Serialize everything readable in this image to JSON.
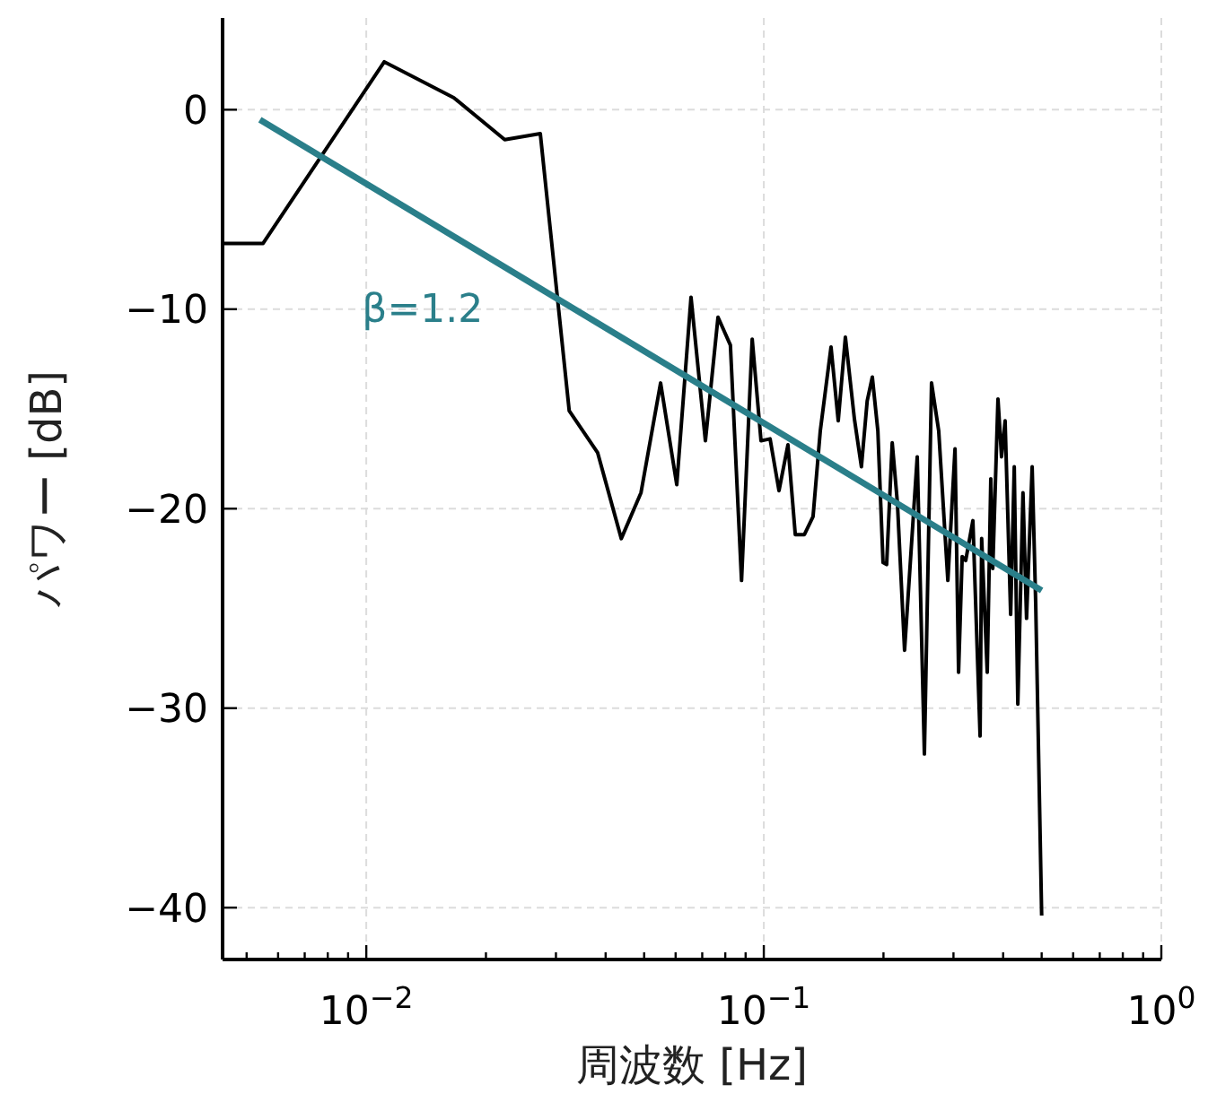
{
  "chart_data": {
    "type": "line",
    "xlabel": "周波数 [Hz]",
    "ylabel": "パワー [dB]",
    "log": "x",
    "grid": true,
    "marker": "none",
    "line_style": "solid",
    "xlim": [
      0.00435,
      1
    ],
    "ylim": [
      -42.6,
      4.6
    ],
    "xticks": [
      {
        "value": 0.005,
        "label": null
      },
      {
        "value": 0.006,
        "label": null
      },
      {
        "value": 0.007,
        "label": null
      },
      {
        "value": 0.008,
        "label": null
      },
      {
        "value": 0.009,
        "label": null
      },
      {
        "value": 0.01,
        "label": "10$^{−2}$"
      },
      {
        "value": 0.02,
        "label": null
      },
      {
        "value": 0.03,
        "label": null
      },
      {
        "value": 0.04,
        "label": null
      },
      {
        "value": 0.05,
        "label": null
      },
      {
        "value": 0.06,
        "label": null
      },
      {
        "value": 0.07,
        "label": null
      },
      {
        "value": 0.08,
        "label": null
      },
      {
        "value": 0.09,
        "label": null
      },
      {
        "value": 0.1,
        "label": "10$^{−1}$"
      },
      {
        "value": 0.2,
        "label": null
      },
      {
        "value": 0.3,
        "label": null
      },
      {
        "value": 0.4,
        "label": null
      },
      {
        "value": 0.5,
        "label": null
      },
      {
        "value": 0.6,
        "label": null
      },
      {
        "value": 0.7,
        "label": null
      },
      {
        "value": 0.8,
        "label": null
      },
      {
        "value": 0.9,
        "label": null
      },
      {
        "value": 1,
        "label": "10$^{0}$"
      }
    ],
    "yticks": [
      {
        "value": -40,
        "label": "−40"
      },
      {
        "value": -30,
        "label": "−30"
      },
      {
        "value": -20,
        "label": "−20"
      },
      {
        "value": -10,
        "label": "−10"
      },
      0
    ],
    "annotations": [
      "β=1.2"
    ],
    "series": [
      {
        "color": "#000000",
        "x": [
          0.00435,
          0.0055,
          0.0111,
          0.0166,
          0.0223,
          0.0274,
          0.0324,
          0.0382,
          0.0438,
          0.0491,
          0.055,
          0.0604,
          0.0656,
          0.0713,
          0.0767,
          0.0824,
          0.0879,
          0.0935,
          0.0984,
          0.1037,
          0.1092,
          0.115,
          0.12,
          0.1265,
          0.133,
          0.1387,
          0.1476,
          0.1539,
          0.1604,
          0.169,
          0.176,
          0.182,
          0.1875,
          0.1936,
          0.1995,
          0.2037,
          0.2104,
          0.2168,
          0.226,
          0.2432,
          0.2535,
          0.2642,
          0.2754,
          0.2904,
          0.3027,
          0.309,
          0.3155,
          0.322,
          0.3357,
          0.35,
          0.3532,
          0.3648,
          0.3724,
          0.3767,
          0.3882,
          0.3963,
          0.4046,
          0.4178,
          0.4266,
          0.4355,
          0.4487,
          0.4581,
          0.4732,
          0.4831,
          0.5
        ],
        "values": [
          -6.7,
          -6.7,
          2.4,
          0.6,
          -1.5,
          -1.2,
          -15.1,
          -17.2,
          -21.5,
          -19.2,
          -13.7,
          -18.8,
          -9.4,
          -16.6,
          -10.4,
          -11.8,
          -23.6,
          -11.5,
          -16.6,
          -16.5,
          -19.1,
          -16.8,
          -21.3,
          -21.3,
          -20.4,
          -16.1,
          -11.9,
          -15.6,
          -11.4,
          -15.5,
          -17.9,
          -14.6,
          -13.4,
          -16.1,
          -22.7,
          -22.8,
          -16.7,
          -19.7,
          -27.1,
          -17.4,
          -32.3,
          -13.7,
          -16.1,
          -23.6,
          -17.0,
          -28.2,
          -22.4,
          -22.6,
          -20.6,
          -31.4,
          -21.5,
          -28.2,
          -18.5,
          -23.0,
          -14.5,
          -17.4,
          -15.6,
          -25.3,
          -17.9,
          -29.8,
          -19.2,
          -25.5,
          -17.9,
          -24.8,
          -40.4
        ]
      },
      {
        "color": "#2a7f8a",
        "x": [
          0.0054,
          0.5
        ],
        "values": [
          -0.5,
          -24.1
        ]
      }
    ]
  }
}
